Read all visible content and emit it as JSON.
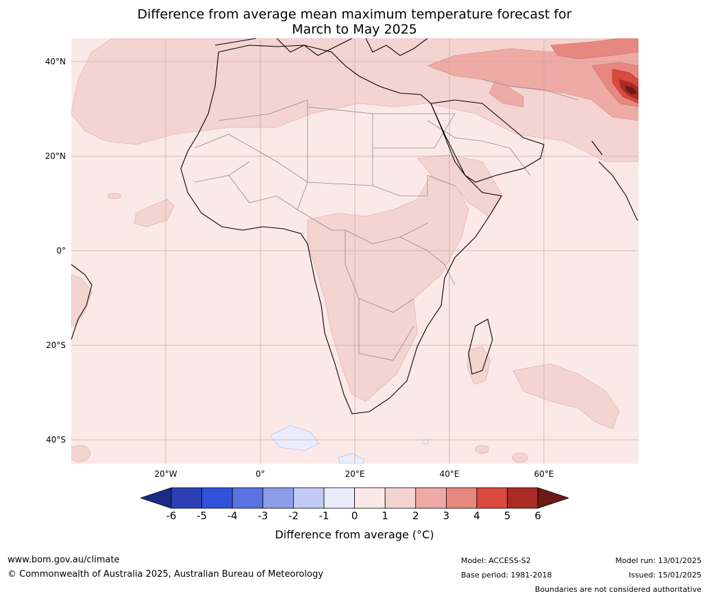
{
  "title": {
    "line1": "Difference from average mean maximum temperature forecast for",
    "line2": "March to May 2025"
  },
  "map": {
    "region": "Africa and Middle East",
    "lat_labels": [
      "40°N",
      "20°N",
      "0°",
      "20°S",
      "40°S"
    ],
    "lon_labels": [
      "20°W",
      "0°",
      "20°E",
      "40°E",
      "60°E"
    ],
    "dominant_anomaly": "0 to 1",
    "colors": {
      "ocean_land_0_1": "#fbe9e7",
      "anomaly_1_2": "#f4d4d1",
      "anomaly_2_3": "#eeaaa5",
      "anomaly_3_4": "#e68880",
      "anomaly_4_5": "#d9493e",
      "anomaly_5_6": "#a92b24",
      "anomaly_gt6": "#6e1a16",
      "neg_0_1": "#e8ecfb"
    }
  },
  "colorbar": {
    "ticks": [
      "-6",
      "-5",
      "-4",
      "-3",
      "-2",
      "-1",
      "0",
      "1",
      "2",
      "3",
      "4",
      "5",
      "6"
    ],
    "colors": [
      "#1c2c86",
      "#2c40b5",
      "#3251dc",
      "#5a72e2",
      "#8b9de9",
      "#c2cbf3",
      "#e8ecfb",
      "#fbe9e7",
      "#f4d4d1",
      "#eeaaa5",
      "#e68880",
      "#d9493e",
      "#a92b24",
      "#6e1a16"
    ],
    "label": "Difference from average (°C)"
  },
  "footer": {
    "url": "www.bom.gov.au/climate",
    "copyright": "© Commonwealth of Australia 2025, Australian Bureau of Meteorology",
    "model": "Model: ACCESS-S2",
    "base_period": "Base period: 1981-2018",
    "model_run": "Model run: 13/01/2025",
    "issued": "Issued: 15/01/2025",
    "disclaimer": "Boundaries are not considered authoritative"
  }
}
